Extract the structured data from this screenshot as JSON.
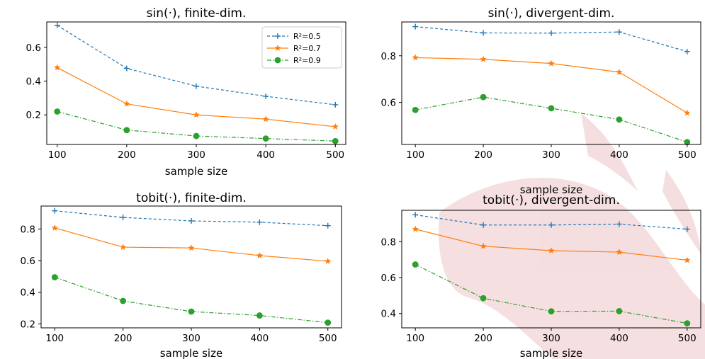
{
  "legend": {
    "entries": [
      {
        "label": "R²=0.5",
        "color": "#1f77b4",
        "marker": "plus",
        "dash": "dashed"
      },
      {
        "label": "R²=0.7",
        "color": "#ff7f0e",
        "marker": "star",
        "dash": "solid"
      },
      {
        "label": "R²=0.9",
        "color": "#2ca02c",
        "marker": "circle",
        "dash": "dashdot"
      }
    ],
    "location": "top-right of first panel"
  },
  "chart_data": [
    {
      "type": "line",
      "title": "sin(·), finite-dim.",
      "xlabel": "sample size",
      "ylabel": "",
      "x": [
        100,
        200,
        300,
        400,
        500
      ],
      "xticks": [
        "100",
        "200",
        "300",
        "400",
        "500"
      ],
      "yticks": [
        0.2,
        0.4,
        0.6
      ],
      "ytick_labels": [
        "0.2",
        "0.4",
        "0.6"
      ],
      "xlim": [
        85,
        515
      ],
      "ylim": [
        0.025,
        0.75
      ],
      "grid": false,
      "legend": true,
      "series": [
        {
          "name": "R²=0.5",
          "values": [
            0.73,
            0.475,
            0.37,
            0.31,
            0.26
          ]
        },
        {
          "name": "R²=0.7",
          "values": [
            0.48,
            0.265,
            0.2,
            0.175,
            0.13
          ]
        },
        {
          "name": "R²=0.9",
          "values": [
            0.22,
            0.11,
            0.075,
            0.06,
            0.045
          ]
        }
      ]
    },
    {
      "type": "line",
      "title": "sin(·), divergent-dim.",
      "xlabel": "sample size",
      "ylabel": "",
      "x": [
        100,
        200,
        300,
        400,
        500
      ],
      "xticks": [
        "100",
        "200",
        "300",
        "400",
        "500"
      ],
      "yticks": [
        0.6,
        0.8
      ],
      "ytick_labels": [
        "0.6",
        "0.8"
      ],
      "xlim": [
        80,
        520
      ],
      "ylim": [
        0.42,
        0.945
      ],
      "grid": false,
      "legend": false,
      "series": [
        {
          "name": "R²=0.5",
          "values": [
            0.925,
            0.898,
            0.897,
            0.902,
            0.818
          ]
        },
        {
          "name": "R²=0.7",
          "values": [
            0.792,
            0.785,
            0.767,
            0.73,
            0.555
          ]
        },
        {
          "name": "R²=0.9",
          "values": [
            0.568,
            0.623,
            0.575,
            0.527,
            0.43
          ]
        }
      ]
    },
    {
      "type": "line",
      "title": "tobit(·), finite-dim.",
      "xlabel": "sample size",
      "ylabel": "",
      "x": [
        100,
        200,
        300,
        400,
        500
      ],
      "xticks": [
        "100",
        "200",
        "300",
        "400",
        "500"
      ],
      "yticks": [
        0.2,
        0.4,
        0.6,
        0.8
      ],
      "ytick_labels": [
        "0.2",
        "0.4",
        "0.6",
        "0.8"
      ],
      "xlim": [
        80,
        520
      ],
      "ylim": [
        0.175,
        0.945
      ],
      "grid": false,
      "legend": false,
      "series": [
        {
          "name": "R²=0.5",
          "values": [
            0.915,
            0.873,
            0.851,
            0.843,
            0.821
          ]
        },
        {
          "name": "R²=0.7",
          "values": [
            0.807,
            0.685,
            0.68,
            0.632,
            0.596
          ]
        },
        {
          "name": "R²=0.9",
          "values": [
            0.495,
            0.345,
            0.278,
            0.253,
            0.208
          ]
        }
      ]
    },
    {
      "type": "line",
      "title": "tobit(·), divergent-dim.",
      "xlabel": "sample size",
      "ylabel": "",
      "x": [
        100,
        200,
        300,
        400,
        500
      ],
      "xticks": [
        "100",
        "200",
        "300",
        "400",
        "500"
      ],
      "yticks": [
        0.4,
        0.6,
        0.8
      ],
      "ytick_labels": [
        "0.4",
        "0.6",
        "0.8"
      ],
      "xlim": [
        80,
        520
      ],
      "ylim": [
        0.32,
        0.975
      ],
      "grid": false,
      "legend": false,
      "series": [
        {
          "name": "R²=0.5",
          "values": [
            0.95,
            0.893,
            0.893,
            0.898,
            0.87
          ]
        },
        {
          "name": "R²=0.7",
          "values": [
            0.87,
            0.775,
            0.75,
            0.742,
            0.697
          ]
        },
        {
          "name": "R²=0.9",
          "values": [
            0.673,
            0.485,
            0.412,
            0.413,
            0.345
          ]
        }
      ]
    }
  ]
}
